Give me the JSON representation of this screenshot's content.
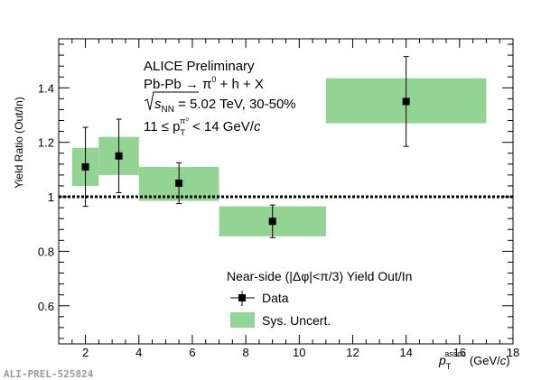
{
  "chart_data": {
    "type": "scatter",
    "xlabel_main": "p",
    "xlabel_sub": "T",
    "xlabel_sup": "assoc",
    "xlabel_units": "(GeV/",
    "xlabel_units_c": "c",
    "xlabel_units_close": ")",
    "ylabel": "Yield Ratio (Out/In)",
    "xlim": [
      1,
      18
    ],
    "ylim": [
      0.46,
      1.58
    ],
    "x_ticks": [
      "2",
      "4",
      "6",
      "8",
      "10",
      "12",
      "14",
      "16",
      "18"
    ],
    "y_ticks": [
      "0.6",
      "0.8",
      "1",
      "1.2",
      "1.4"
    ],
    "reference_line": 1,
    "annotation": {
      "line1": "ALICE Preliminary",
      "line2_a": "Pb-Pb → π",
      "line2_sup": "0",
      "line2_b": " + h + X",
      "line3_s": "s",
      "line3_sub": "NN",
      "line3_b": " = 5.02 TeV, 30-50%",
      "line4_a": "11 ≤ p",
      "line4_sub": "T",
      "line4_sup": "π⁰",
      "line4_b": " < 14 GeV/",
      "line4_c": "c"
    },
    "legend_title": "Near-side (|Δφ|<π/3) Yield Out/In",
    "legend_data": "Data",
    "legend_sys": "Sys. Uncert.",
    "watermark": "ALI-PREL-525824",
    "series": [
      {
        "name": "Data",
        "points": [
          {
            "x": 2.0,
            "y": 1.11,
            "err_low": 0.145,
            "err_high": 0.145
          },
          {
            "x": 3.25,
            "y": 1.15,
            "err_low": 0.135,
            "err_high": 0.135
          },
          {
            "x": 5.5,
            "y": 1.05,
            "err_low": 0.075,
            "err_high": 0.075
          },
          {
            "x": 9.0,
            "y": 0.91,
            "err_low": 0.06,
            "err_high": 0.06
          },
          {
            "x": 14.0,
            "y": 1.35,
            "err_low": 0.165,
            "err_high": 0.165
          }
        ]
      },
      {
        "name": "Sys. Uncert.",
        "boxes": [
          {
            "x0": 1.5,
            "x1": 2.5,
            "y0": 1.04,
            "y1": 1.18
          },
          {
            "x0": 2.5,
            "x1": 4.0,
            "y0": 1.08,
            "y1": 1.22
          },
          {
            "x0": 4.0,
            "x1": 7.0,
            "y0": 0.985,
            "y1": 1.11
          },
          {
            "x0": 7.0,
            "x1": 11.0,
            "y0": 0.855,
            "y1": 0.965
          },
          {
            "x0": 11.0,
            "x1": 17.0,
            "y0": 1.27,
            "y1": 1.435
          }
        ]
      }
    ],
    "colors": {
      "sys_fill": "#93d393",
      "marker": "#000000",
      "reference": "#000000"
    }
  }
}
